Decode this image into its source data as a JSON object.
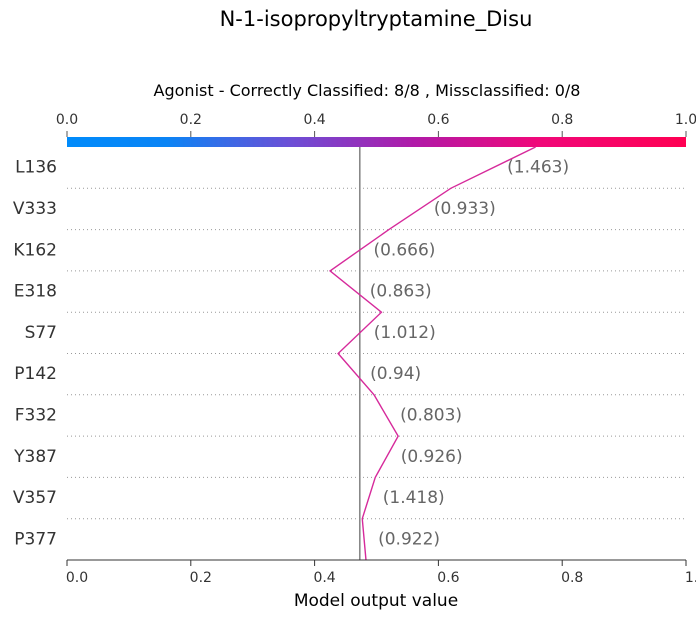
{
  "chart_data": {
    "type": "line",
    "title": "N-1-isopropyltryptamine_Disu",
    "subtitle": "Agonist - Correctly Classified: 8/8 , Missclassified: 0/8",
    "xlabel": "Model output value",
    "xlim": [
      0.0,
      1.0
    ],
    "x_ticks": [
      "0.0",
      "0.2",
      "0.4",
      "0.6",
      "0.8",
      "1.0"
    ],
    "x_tick_values": [
      0.0,
      0.2,
      0.4,
      0.6,
      0.8,
      1.0
    ],
    "base_value": 0.473,
    "colorbar": {
      "from": "#008bfb",
      "to": "#ff0052",
      "position": "top"
    },
    "line_color": "#d62a9b",
    "grid": "horizontal-dotted",
    "features": [
      {
        "name": "L136",
        "value_label": "(1.463)"
      },
      {
        "name": "V333",
        "value_label": "(0.933)"
      },
      {
        "name": "K162",
        "value_label": "(0.666)"
      },
      {
        "name": "E318",
        "value_label": "(0.863)"
      },
      {
        "name": "S77",
        "value_label": "(1.012)"
      },
      {
        "name": "P142",
        "value_label": "(0.94)"
      },
      {
        "name": "F332",
        "value_label": "(0.803)"
      },
      {
        "name": "Y387",
        "value_label": "(0.926)"
      },
      {
        "name": "V357",
        "value_label": "(1.418)"
      },
      {
        "name": "P377",
        "value_label": "(0.922)"
      }
    ],
    "path_x": [
      0.757,
      0.62,
      0.52,
      0.425,
      0.508,
      0.438,
      0.496,
      0.535,
      0.498,
      0.477,
      0.483
    ]
  }
}
